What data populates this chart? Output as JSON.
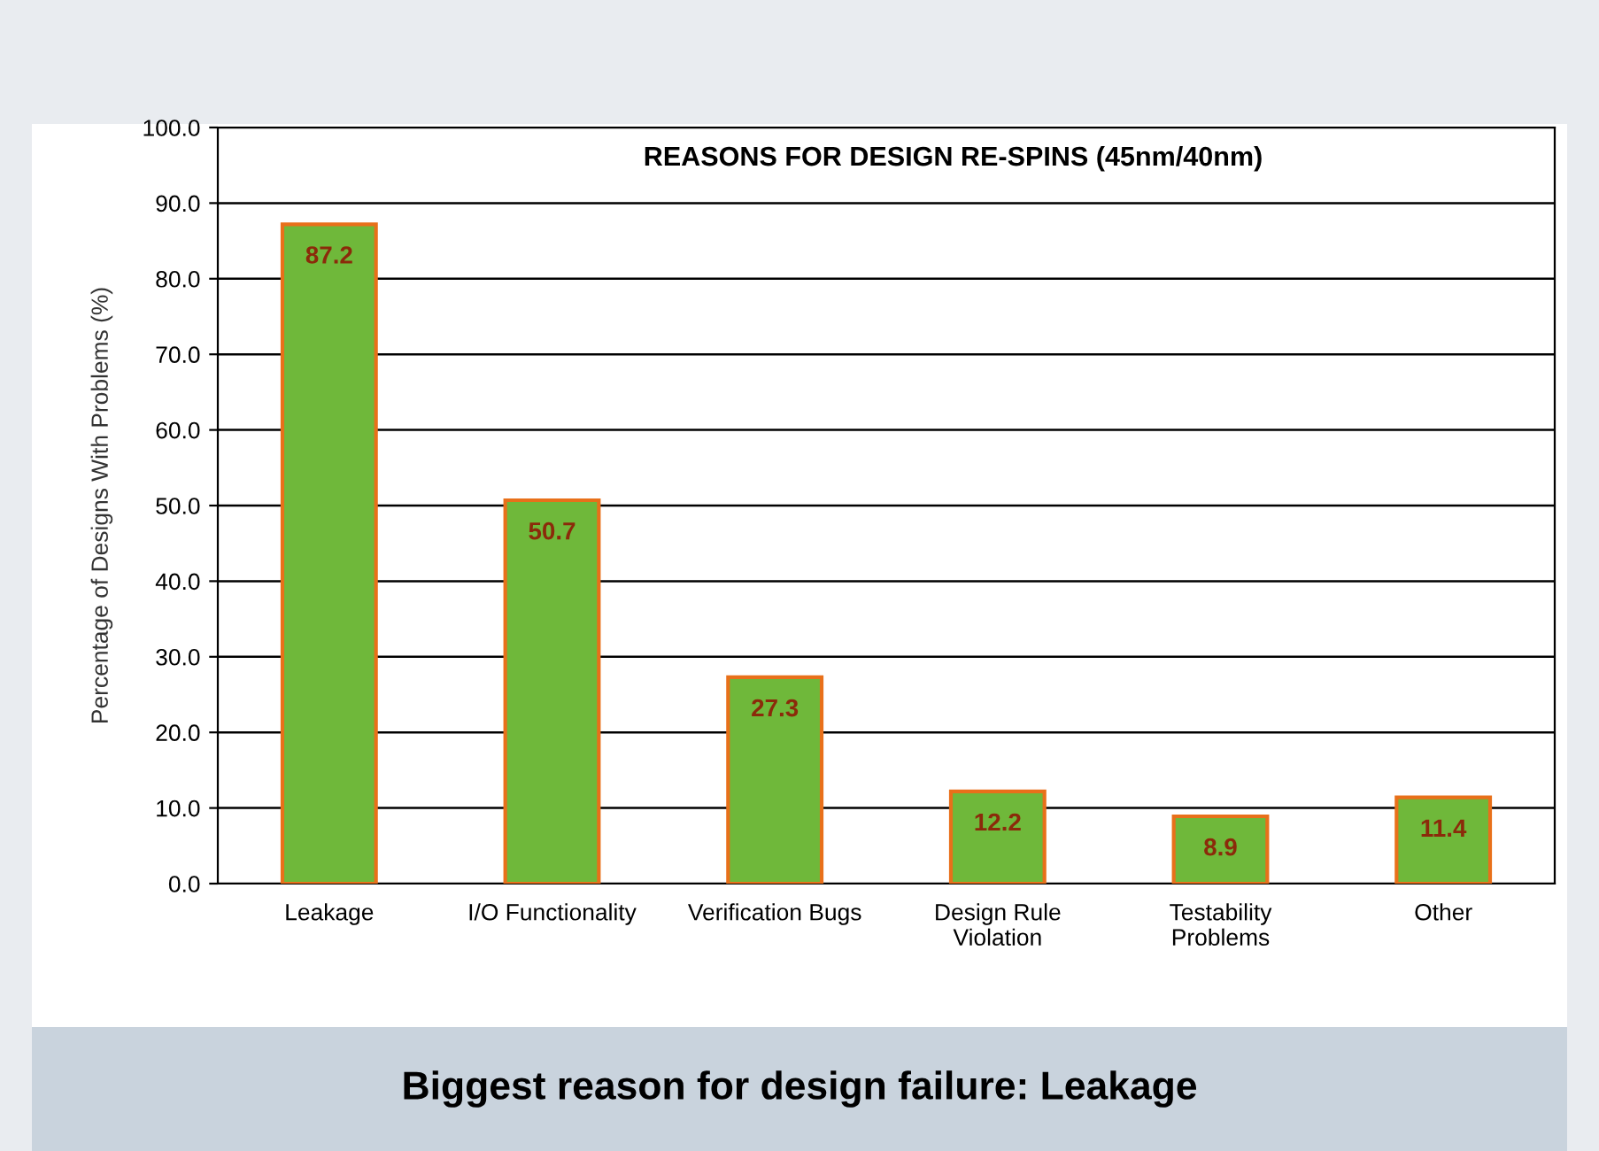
{
  "chart_data": {
    "type": "bar",
    "title": "REASONS FOR DESIGN RE-SPINS (45nm/40nm)",
    "ylabel": "Percentage of Designs With Problems (%)",
    "categories": [
      "Leakage",
      "I/O Functionality",
      "Verification Bugs",
      "Design Rule\nViolation",
      "Testability\nProblems",
      "Other"
    ],
    "values": [
      87.2,
      50.7,
      27.3,
      12.2,
      8.9,
      11.4
    ],
    "color": "#6fb83a",
    "data_labels": true,
    "ylim": [
      0,
      100
    ],
    "yticks": [
      {
        "value": 0,
        "label": "0.0"
      },
      {
        "value": 10,
        "label": "10.0"
      },
      {
        "value": 20,
        "label": "20.0"
      },
      {
        "value": 30,
        "label": "30.0"
      },
      {
        "value": 40,
        "label": "40.0"
      },
      {
        "value": 50,
        "label": "50.0"
      },
      {
        "value": 60,
        "label": "60.0"
      },
      {
        "value": 70,
        "label": "70.0"
      },
      {
        "value": 80,
        "label": "80.0"
      },
      {
        "value": 90,
        "label": "90.0"
      },
      {
        "value": 100,
        "label": "100.0"
      }
    ],
    "grid": "y",
    "legend": false,
    "annotations": [
      "Biggest reason for design failure: Leakage"
    ]
  }
}
